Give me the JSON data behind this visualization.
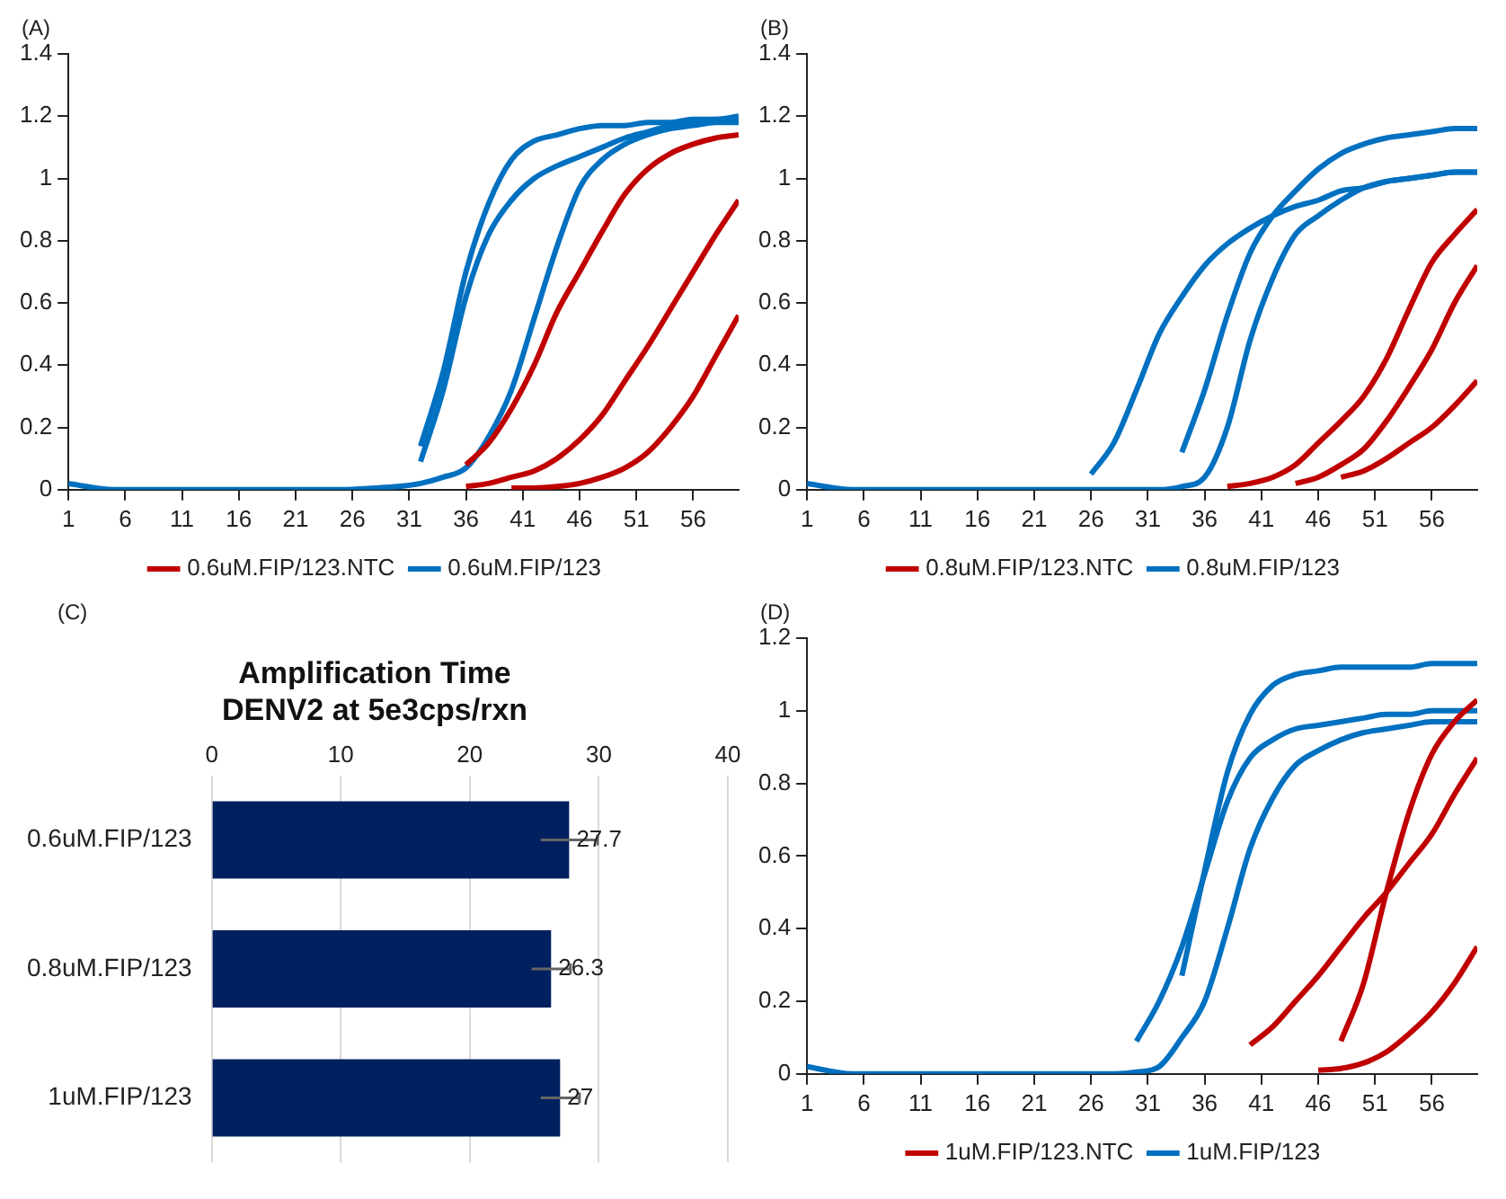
{
  "chart_data": [
    {
      "type": "line",
      "annotations": [
        "(A)"
      ],
      "x": [
        1,
        5,
        10,
        15,
        20,
        25,
        28,
        30,
        32,
        34,
        36,
        38,
        40,
        42,
        44,
        46,
        48,
        50,
        52,
        54,
        56,
        58,
        60
      ],
      "xlim": [
        1,
        60
      ],
      "xticks": [
        1,
        6,
        11,
        16,
        21,
        26,
        31,
        36,
        41,
        46,
        51,
        56
      ],
      "ylim": [
        0,
        1.4
      ],
      "yticks": [
        0,
        0.2,
        0.4,
        0.6,
        0.8,
        1,
        1.2,
        1.4
      ],
      "grid": false,
      "legend": "bottom",
      "marker": "none",
      "line_style": "solid",
      "series": [
        {
          "name": "0.6uM.FIP/123.NTC",
          "color": "#c00000",
          "values": [
            null,
            null,
            null,
            null,
            null,
            null,
            null,
            null,
            null,
            null,
            0.08,
            0.15,
            0.26,
            0.4,
            0.57,
            0.7,
            0.83,
            0.95,
            1.03,
            1.08,
            1.11,
            1.13,
            1.14
          ]
        },
        {
          "color": "#c00000",
          "values": [
            null,
            null,
            null,
            null,
            null,
            null,
            null,
            null,
            null,
            null,
            0.01,
            0.02,
            0.04,
            0.06,
            0.1,
            0.16,
            0.24,
            0.35,
            0.46,
            0.58,
            0.7,
            0.82,
            0.93
          ]
        },
        {
          "color": "#c00000",
          "values": [
            null,
            null,
            null,
            null,
            null,
            null,
            null,
            null,
            null,
            null,
            null,
            null,
            0.005,
            0.005,
            0.01,
            0.02,
            0.04,
            0.07,
            0.12,
            0.2,
            0.3,
            0.43,
            0.56
          ]
        },
        {
          "name": "0.6uM.FIP/123",
          "color": "#0070c0",
          "values": [
            null,
            null,
            null,
            null,
            null,
            null,
            null,
            null,
            0.14,
            0.38,
            0.7,
            0.92,
            1.06,
            1.12,
            1.14,
            1.16,
            1.17,
            1.17,
            1.18,
            1.18,
            1.19,
            1.19,
            1.2
          ]
        },
        {
          "color": "#0070c0",
          "values": [
            null,
            null,
            null,
            null,
            null,
            null,
            null,
            null,
            0.09,
            0.32,
            0.62,
            0.82,
            0.93,
            1,
            1.04,
            1.07,
            1.1,
            1.13,
            1.15,
            1.17,
            1.18,
            1.19,
            1.19
          ]
        },
        {
          "color": "#0070c0",
          "values": [
            0.02,
            0,
            0,
            0,
            0,
            0,
            0.005,
            0.01,
            0.02,
            0.04,
            0.07,
            0.17,
            0.32,
            0.55,
            0.78,
            0.97,
            1.06,
            1.11,
            1.14,
            1.16,
            1.17,
            1.18,
            1.18
          ]
        }
      ]
    },
    {
      "type": "line",
      "annotations": [
        "(B)"
      ],
      "x": [
        1,
        5,
        10,
        15,
        20,
        22,
        24,
        26,
        28,
        30,
        32,
        34,
        36,
        38,
        40,
        42,
        44,
        46,
        48,
        50,
        52,
        54,
        56,
        58,
        60
      ],
      "xlim": [
        1,
        60
      ],
      "xticks": [
        1,
        6,
        11,
        16,
        21,
        26,
        31,
        36,
        41,
        46,
        51,
        56
      ],
      "ylim": [
        0,
        1.4
      ],
      "yticks": [
        0,
        0.2,
        0.4,
        0.6,
        0.8,
        1,
        1.2,
        1.4
      ],
      "grid": false,
      "legend": "bottom",
      "marker": "none",
      "line_style": "solid",
      "series": [
        {
          "name": "0.8uM.FIP/123.NTC",
          "color": "#c00000",
          "values": [
            null,
            null,
            null,
            null,
            null,
            null,
            null,
            null,
            null,
            null,
            null,
            null,
            null,
            0.01,
            0.02,
            0.04,
            0.08,
            0.15,
            0.22,
            0.3,
            0.42,
            0.58,
            0.73,
            0.82,
            0.9
          ]
        },
        {
          "color": "#c00000",
          "values": [
            null,
            null,
            null,
            null,
            null,
            null,
            null,
            null,
            null,
            null,
            null,
            null,
            null,
            null,
            null,
            null,
            0.02,
            0.04,
            0.08,
            0.13,
            0.22,
            0.33,
            0.45,
            0.6,
            0.72
          ]
        },
        {
          "color": "#c00000",
          "values": [
            null,
            null,
            null,
            null,
            null,
            null,
            null,
            null,
            null,
            null,
            null,
            null,
            null,
            null,
            null,
            null,
            null,
            null,
            0.04,
            0.06,
            0.1,
            0.15,
            0.2,
            0.27,
            0.35
          ]
        },
        {
          "name": "0.8uM.FIP/123",
          "color": "#0070c0",
          "values": [
            null,
            null,
            null,
            null,
            null,
            null,
            null,
            0.05,
            0.15,
            0.32,
            0.5,
            0.62,
            0.72,
            0.79,
            0.84,
            0.88,
            0.91,
            0.93,
            0.96,
            0.97,
            0.99,
            1,
            1.01,
            1.02,
            1.02
          ]
        },
        {
          "color": "#0070c0",
          "values": [
            null,
            null,
            null,
            null,
            null,
            null,
            null,
            null,
            null,
            null,
            null,
            0.12,
            0.32,
            0.56,
            0.76,
            0.88,
            0.96,
            1.03,
            1.08,
            1.11,
            1.13,
            1.14,
            1.15,
            1.16,
            1.16
          ]
        },
        {
          "color": "#0070c0",
          "values": [
            0.02,
            0,
            0,
            0,
            0,
            0,
            0,
            0,
            0,
            0,
            0,
            0.01,
            0.04,
            0.2,
            0.48,
            0.68,
            0.82,
            0.88,
            0.93,
            0.97,
            0.99,
            1,
            1.01,
            1.02,
            1.02
          ]
        }
      ]
    },
    {
      "type": "bar",
      "orientation": "horizontal",
      "annotations": [
        "(C)"
      ],
      "title": "Amplification Time\nDENV2 at 5e3cps/rxn",
      "categories": [
        "0.6uM.FIP/123",
        "0.8uM.FIP/123",
        "1uM.FIP/123"
      ],
      "values": [
        27.7,
        26.3,
        27
      ],
      "errors": [
        2.2,
        1.5,
        1.5
      ],
      "color": "#002060",
      "xlim": [
        0,
        40
      ],
      "xticks": [
        0,
        10,
        20,
        30,
        40
      ],
      "grid": "x",
      "data_labels": true
    },
    {
      "type": "line",
      "annotations": [
        "(D)"
      ],
      "x": [
        1,
        5,
        10,
        15,
        20,
        25,
        28,
        30,
        32,
        34,
        36,
        38,
        40,
        42,
        44,
        46,
        48,
        50,
        52,
        54,
        56,
        58,
        60
      ],
      "xlim": [
        1,
        60
      ],
      "xticks": [
        1,
        6,
        11,
        16,
        21,
        26,
        31,
        36,
        41,
        46,
        51,
        56
      ],
      "ylim": [
        0,
        1.2
      ],
      "yticks": [
        0,
        0.2,
        0.4,
        0.6,
        0.8,
        1,
        1.2
      ],
      "grid": false,
      "legend": "bottom",
      "marker": "none",
      "line_style": "solid",
      "series": [
        {
          "name": "1uM.FIP/123.NTC",
          "color": "#c00000",
          "values": [
            null,
            null,
            null,
            null,
            null,
            null,
            null,
            null,
            null,
            null,
            null,
            null,
            0.08,
            0.13,
            0.2,
            0.27,
            0.35,
            0.43,
            0.5,
            0.58,
            0.66,
            0.77,
            0.87
          ]
        },
        {
          "color": "#c00000",
          "values": [
            null,
            null,
            null,
            null,
            null,
            null,
            null,
            null,
            null,
            null,
            null,
            null,
            null,
            null,
            null,
            null,
            0.09,
            0.25,
            0.5,
            0.72,
            0.88,
            0.97,
            1.03
          ]
        },
        {
          "color": "#c00000",
          "values": [
            null,
            null,
            null,
            null,
            null,
            null,
            null,
            null,
            null,
            null,
            null,
            null,
            null,
            null,
            null,
            0.01,
            0.015,
            0.03,
            0.06,
            0.11,
            0.17,
            0.25,
            0.35
          ]
        },
        {
          "name": "1uM.FIP/123",
          "color": "#0070c0",
          "values": [
            null,
            null,
            null,
            null,
            null,
            null,
            null,
            0.09,
            0.2,
            0.35,
            0.55,
            0.75,
            0.87,
            0.92,
            0.95,
            0.96,
            0.97,
            0.98,
            0.99,
            0.99,
            1,
            1,
            1
          ]
        },
        {
          "color": "#0070c0",
          "values": [
            null,
            null,
            null,
            null,
            null,
            null,
            null,
            null,
            null,
            0.27,
            0.56,
            0.83,
            0.99,
            1.07,
            1.1,
            1.11,
            1.12,
            1.12,
            1.12,
            1.12,
            1.13,
            1.13,
            1.13
          ]
        },
        {
          "color": "#0070c0",
          "values": [
            0.02,
            0,
            0,
            0,
            0,
            0,
            0,
            0.005,
            0.02,
            0.1,
            0.2,
            0.4,
            0.62,
            0.76,
            0.85,
            0.89,
            0.92,
            0.94,
            0.95,
            0.96,
            0.97,
            0.97,
            0.97
          ]
        }
      ]
    }
  ]
}
